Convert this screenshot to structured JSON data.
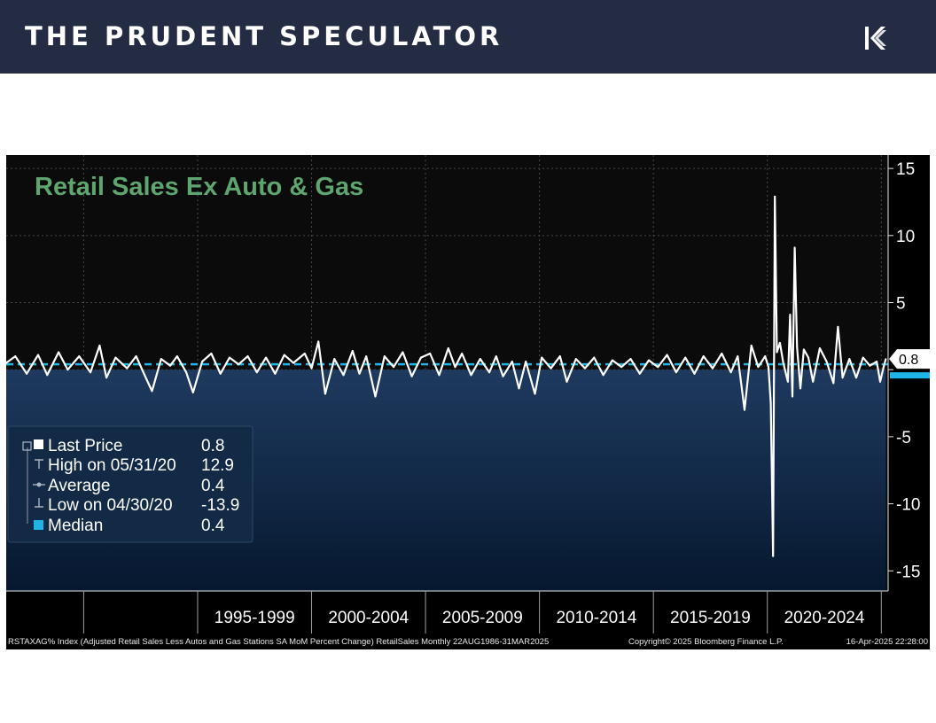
{
  "header": {
    "brand": "THE PRUDENT SPECULATOR",
    "logo_icon": "tps-logo-icon"
  },
  "chart_data": {
    "type": "line",
    "title": "Retail Sales Ex Auto & Gas",
    "unit": "SA MoM Percent Change",
    "y_ticks": [
      15,
      10,
      5,
      0,
      -5,
      -10,
      -15
    ],
    "y_tick_labels": [
      "15",
      "10",
      "5",
      "",
      "-5",
      "-10",
      "-15"
    ],
    "ylim": [
      -16.5,
      16
    ],
    "x_range": [
      1986.6,
      2025.3
    ],
    "x_categories": [
      "1995-1999",
      "2000-2004",
      "2005-2009",
      "2010-2014",
      "2015-2019",
      "2020-2024"
    ],
    "x_category_bounds": [
      [
        1995,
        2000
      ],
      [
        2000,
        2005
      ],
      [
        2005,
        2010
      ],
      [
        2010,
        2015
      ],
      [
        2015,
        2020
      ],
      [
        2020,
        2025
      ]
    ],
    "x_gridlines": [
      1990,
      1995,
      2000,
      2005,
      2010,
      2015,
      2020,
      2025
    ],
    "last_value_label": "0.8",
    "colors": {
      "line": "#ffffff",
      "median": "#1fb4e6",
      "area_top": "#1e3a5f",
      "area_bottom": "#06182f",
      "title": "#5fa56f",
      "background": "#000000"
    },
    "series": [
      {
        "name": "RSTAXAG% Index",
        "points": [
          [
            1986.6,
            0.5
          ],
          [
            1987.0,
            1.0
          ],
          [
            1987.5,
            -0.3
          ],
          [
            1988.0,
            1.1
          ],
          [
            1988.4,
            -0.4
          ],
          [
            1988.9,
            1.3
          ],
          [
            1989.3,
            0.0
          ],
          [
            1989.8,
            1.0
          ],
          [
            1990.3,
            -0.2
          ],
          [
            1990.7,
            1.8
          ],
          [
            1991.0,
            -0.6
          ],
          [
            1991.4,
            0.9
          ],
          [
            1991.9,
            0.1
          ],
          [
            1992.3,
            1.0
          ],
          [
            1992.7,
            -0.5
          ],
          [
            1993.0,
            -1.6
          ],
          [
            1993.4,
            0.8
          ],
          [
            1993.8,
            0.3
          ],
          [
            1994.1,
            1.0
          ],
          [
            1994.5,
            -0.2
          ],
          [
            1994.8,
            -1.7
          ],
          [
            1995.2,
            0.6
          ],
          [
            1995.6,
            1.2
          ],
          [
            1996.0,
            -0.3
          ],
          [
            1996.4,
            0.9
          ],
          [
            1996.8,
            0.4
          ],
          [
            1997.2,
            1.0
          ],
          [
            1997.6,
            -0.2
          ],
          [
            1998.0,
            0.9
          ],
          [
            1998.4,
            -0.3
          ],
          [
            1998.8,
            1.1
          ],
          [
            1999.2,
            0.5
          ],
          [
            1999.7,
            1.2
          ],
          [
            2000.0,
            0.1
          ],
          [
            2000.3,
            2.1
          ],
          [
            2000.6,
            -1.8
          ],
          [
            2001.0,
            0.8
          ],
          [
            2001.4,
            -0.4
          ],
          [
            2001.8,
            1.4
          ],
          [
            2002.1,
            -0.3
          ],
          [
            2002.4,
            1.0
          ],
          [
            2002.8,
            -2.0
          ],
          [
            2003.2,
            1.0
          ],
          [
            2003.6,
            0.2
          ],
          [
            2004.0,
            1.3
          ],
          [
            2004.4,
            -0.5
          ],
          [
            2004.8,
            0.9
          ],
          [
            2005.2,
            1.2
          ],
          [
            2005.6,
            -0.4
          ],
          [
            2006.0,
            1.6
          ],
          [
            2006.3,
            0.2
          ],
          [
            2006.6,
            1.2
          ],
          [
            2007.0,
            -0.4
          ],
          [
            2007.4,
            0.8
          ],
          [
            2007.8,
            -0.2
          ],
          [
            2008.1,
            1.0
          ],
          [
            2008.4,
            -0.5
          ],
          [
            2008.8,
            0.6
          ],
          [
            2009.1,
            -1.4
          ],
          [
            2009.4,
            0.6
          ],
          [
            2009.8,
            -1.8
          ],
          [
            2010.1,
            0.9
          ],
          [
            2010.5,
            0.1
          ],
          [
            2010.9,
            1.0
          ],
          [
            2011.2,
            -0.9
          ],
          [
            2011.6,
            0.8
          ],
          [
            2012.0,
            0.1
          ],
          [
            2012.4,
            0.9
          ],
          [
            2012.8,
            -0.4
          ],
          [
            2013.2,
            0.7
          ],
          [
            2013.6,
            0.2
          ],
          [
            2014.0,
            0.8
          ],
          [
            2014.4,
            -0.3
          ],
          [
            2014.8,
            0.7
          ],
          [
            2015.2,
            0.2
          ],
          [
            2015.6,
            1.1
          ],
          [
            2016.0,
            -0.2
          ],
          [
            2016.4,
            0.9
          ],
          [
            2016.8,
            -0.3
          ],
          [
            2017.2,
            1.0
          ],
          [
            2017.6,
            0.1
          ],
          [
            2018.0,
            1.2
          ],
          [
            2018.4,
            -0.2
          ],
          [
            2018.7,
            1.0
          ],
          [
            2019.0,
            -3.0
          ],
          [
            2019.3,
            1.8
          ],
          [
            2019.6,
            0.2
          ],
          [
            2019.9,
            1.0
          ],
          [
            2020.05,
            0.2
          ],
          [
            2020.15,
            -2.5
          ],
          [
            2020.25,
            -13.9
          ],
          [
            2020.33,
            12.9
          ],
          [
            2020.42,
            1.3
          ],
          [
            2020.55,
            2.0
          ],
          [
            2020.7,
            0.5
          ],
          [
            2020.9,
            -0.9
          ],
          [
            2021.0,
            4.1
          ],
          [
            2021.1,
            -2.0
          ],
          [
            2021.2,
            9.1
          ],
          [
            2021.3,
            1.7
          ],
          [
            2021.45,
            -1.4
          ],
          [
            2021.6,
            1.5
          ],
          [
            2021.8,
            0.9
          ],
          [
            2022.0,
            -0.9
          ],
          [
            2022.3,
            1.6
          ],
          [
            2022.6,
            0.6
          ],
          [
            2022.9,
            -1.0
          ],
          [
            2023.1,
            3.2
          ],
          [
            2023.3,
            -0.6
          ],
          [
            2023.6,
            0.8
          ],
          [
            2023.9,
            -0.6
          ],
          [
            2024.2,
            0.9
          ],
          [
            2024.5,
            0.3
          ],
          [
            2024.8,
            0.6
          ],
          [
            2024.95,
            -0.9
          ],
          [
            2025.1,
            0.2
          ],
          [
            2025.2,
            0.8
          ]
        ]
      }
    ],
    "median": 0.4,
    "legend": [
      {
        "label": "Last Price",
        "value": "0.8",
        "marker": "square-white"
      },
      {
        "label": "High on 05/31/20",
        "value": "12.9",
        "marker": "high-marker"
      },
      {
        "label": "Average",
        "value": "0.4",
        "marker": "average-marker"
      },
      {
        "label": "Low on 04/30/20",
        "value": "-13.9",
        "marker": "low-marker"
      },
      {
        "label": "Median",
        "value": "0.4",
        "marker": "square-cyan"
      }
    ],
    "legend_placement": "bottom-left",
    "footer_left": "RSTAXAG% Index (Adjusted Retail Sales Less Autos and Gas Stations SA MoM Percent Change) RetailSales  Monthly 22AUG1986-31MAR2025",
    "footer_mid": "Copyright© 2025 Bloomberg Finance L.P.",
    "footer_right": "16-Apr-2025 22:28:00"
  }
}
